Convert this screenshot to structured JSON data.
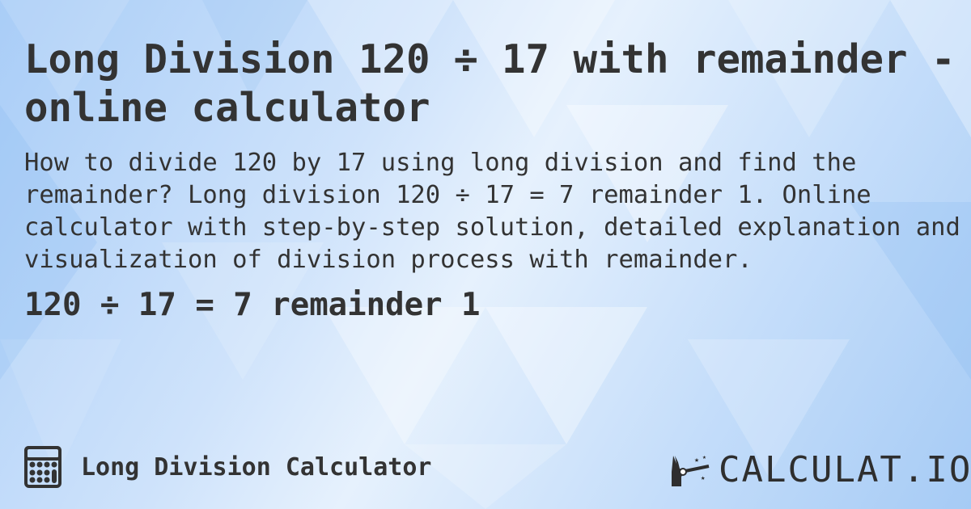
{
  "title": "Long Division 120 ÷ 17 with remainder - online calculator",
  "description": "How to divide 120 by 17 using long division and find the remainder? Long division 120 ÷ 17 = 7 remainder 1. Online calculator with step-by-step solution, detailed explanation and visualization of division process with remainder.",
  "result": "120 ÷ 17 = 7 remainder 1",
  "footer": {
    "icon": "calculator-icon",
    "label": "Long Division Calculator"
  },
  "logo": {
    "text": "CALCULAT.IO",
    "icon": "magic-wand-hand-icon"
  },
  "colors": {
    "text": "#333333",
    "background": "#c4ddfa"
  }
}
